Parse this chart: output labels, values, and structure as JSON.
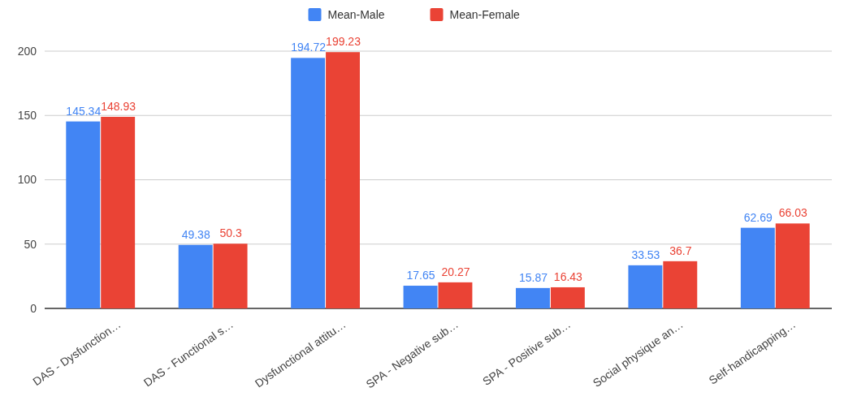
{
  "chart_data": {
    "type": "bar",
    "categories": [
      "DAS - Dysfunction…",
      "DAS - Functional s…",
      "Dysfunctional attitu…",
      "SPA - Negative sub…",
      "SPA - Positive sub…",
      "Social physique an…",
      "Self-handicapping…"
    ],
    "series": [
      {
        "name": "Mean-Male",
        "color": "#4285f4",
        "values": [
          145.34,
          49.38,
          194.72,
          17.65,
          15.87,
          33.53,
          62.69
        ]
      },
      {
        "name": "Mean-Female",
        "color": "#ea4335",
        "values": [
          148.93,
          50.3,
          199.23,
          20.27,
          16.43,
          36.7,
          66.03
        ]
      }
    ],
    "ylim": [
      0,
      200
    ],
    "yticks": [
      0,
      50,
      100,
      150,
      200
    ],
    "grid": "y",
    "legend": "top",
    "data_labels": true
  }
}
